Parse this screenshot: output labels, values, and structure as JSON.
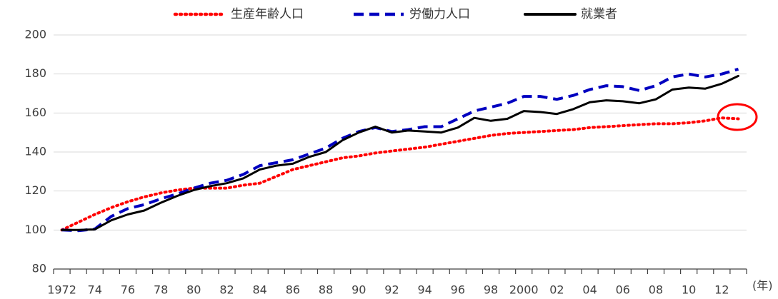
{
  "chart_data": {
    "type": "line",
    "x_unit_label": "(年)",
    "categories": [
      "1972",
      null,
      "74",
      null,
      "76",
      null,
      "78",
      null,
      "80",
      null,
      "82",
      null,
      "84",
      null,
      "86",
      null,
      "88",
      null,
      "90",
      null,
      "92",
      null,
      "94",
      null,
      "96",
      null,
      "98",
      null,
      "2000",
      null,
      "02",
      null,
      "04",
      null,
      "06",
      null,
      "08",
      null,
      "10",
      null,
      "12",
      null
    ],
    "series": [
      {
        "name": "生産年齢人口",
        "color": "#ff0000",
        "style": "dotted",
        "values": [
          100,
          104,
          108,
          111.5,
          114.5,
          117,
          119,
          120.5,
          121.5,
          121.5,
          121.5,
          123,
          124,
          127.5,
          131,
          133,
          135,
          137,
          138,
          139.5,
          140.5,
          141.5,
          142.5,
          144,
          145.5,
          147,
          148.5,
          149.5,
          150,
          150.5,
          151,
          151.5,
          152.5,
          153,
          153.5,
          154,
          154.5,
          154.5,
          155,
          156,
          157.5,
          157
        ]
      },
      {
        "name": "労働力人口",
        "color": "#0000c0",
        "style": "dashed",
        "values": [
          100,
          99.7,
          100.5,
          107,
          111,
          113,
          116,
          118.5,
          121.5,
          124,
          125.5,
          128.5,
          133,
          134.5,
          136,
          139,
          142,
          147,
          150.5,
          152.5,
          150.5,
          151.5,
          153,
          153,
          157,
          161,
          163,
          165,
          168.5,
          168.5,
          167,
          169,
          172,
          174,
          173.5,
          171.5,
          174,
          178.5,
          180,
          178.5,
          180,
          182.5
        ]
      },
      {
        "name": "就業者",
        "color": "#000000",
        "style": "solid",
        "values": [
          100,
          100,
          100.3,
          105,
          108,
          110,
          114,
          117.5,
          120.5,
          122.5,
          124,
          126.5,
          131,
          133,
          134,
          137.5,
          140,
          146,
          150,
          153,
          150,
          151,
          150.5,
          150,
          152.5,
          157.5,
          156,
          157,
          161,
          160.5,
          159.5,
          162,
          165.5,
          166.5,
          166,
          165,
          167,
          172,
          173,
          172.5,
          175,
          179
        ]
      }
    ],
    "ylim": [
      80,
      200
    ],
    "yticks": [
      80,
      100,
      120,
      140,
      160,
      180,
      200
    ],
    "grid": true
  }
}
